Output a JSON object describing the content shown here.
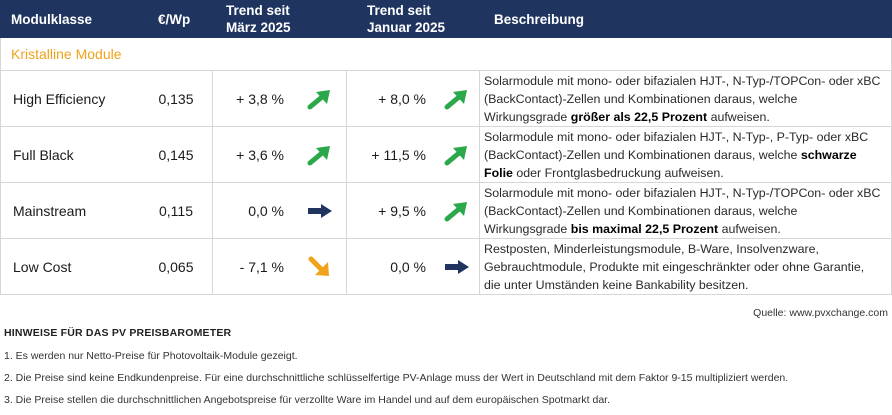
{
  "header": {
    "modulklasse": "Modulklasse",
    "price": "€/Wp",
    "trend1_line1": "Trend seit",
    "trend1_line2": "März 2025",
    "trend2_line1": "Trend seit",
    "trend2_line2": "Januar 2025",
    "beschreibung": "Beschreibung"
  },
  "section_title": "Kristalline Module",
  "rows": [
    {
      "name": "High Efficiency",
      "price": "0,135",
      "trend1": "+ 3,8 %",
      "trend1_icon": "arrow-up-right-icon",
      "trend2": "+ 8,0 %",
      "trend2_icon": "arrow-up-right-icon",
      "desc_pre": "Solarmodule mit mono- oder bifazialen HJT-, N-Typ-/TOPCon- oder xBC (BackContact)-Zellen und Kombinationen daraus, welche Wirkungsgrade ",
      "desc_bold": "größer als 22,5 Prozent",
      "desc_post": " aufweisen."
    },
    {
      "name": "Full Black",
      "price": "0,145",
      "trend1": "+ 3,6 %",
      "trend1_icon": "arrow-up-right-icon",
      "trend2": "+ 11,5 %",
      "trend2_icon": "arrow-up-right-icon",
      "desc_pre": "Solarmodule mit mono- oder bifazialen HJT-, N-Typ-, P-Typ- oder xBC (BackContact)-Zellen und Kombinationen daraus, welche ",
      "desc_bold": "schwarze Folie",
      "desc_post": " oder Frontglasbedruckung aufweisen."
    },
    {
      "name": "Mainstream",
      "price": "0,115",
      "trend1": "0,0 %",
      "trend1_icon": "arrow-right-icon",
      "trend2": "+ 9,5 %",
      "trend2_icon": "arrow-up-right-icon",
      "desc_pre": "Solarmodule mit mono- oder bifazialen HJT-, N-Typ-/TOPCon- oder xBC (BackContact)-Zellen und Kombinationen daraus, welche Wirkungsgrade ",
      "desc_bold": "bis maximal 22,5 Prozent",
      "desc_post": " aufweisen."
    },
    {
      "name": "Low Cost",
      "price": "0,065",
      "trend1": "-  7,1 %",
      "trend1_icon": "arrow-down-right-icon",
      "trend2": "0,0 %",
      "trend2_icon": "arrow-right-icon",
      "desc_pre": "Restposten, Minderleistungsmodule, B-Ware, Insolvenzware, Gebrauchtmodule, Produkte mit eingeschränkter oder ohne Garantie, die unter Umständen keine Bankability besitzen.",
      "desc_bold": "",
      "desc_post": ""
    }
  ],
  "colors": {
    "header_bg": "#1f3560",
    "section_title": "#f0a21b",
    "arrow_up": "#2aa84a",
    "arrow_right": "#1f3560",
    "arrow_down": "#f0a21b"
  },
  "source": "Quelle: www.pvxchange.com",
  "notes_title": "HINWEISE FÜR DAS PV PREISBAROMETER",
  "notes": [
    "1.  Es werden nur Netto-Preise für Photovoltaik-Module gezeigt.",
    "2. Die Preise sind keine Endkundenpreise. Für eine durchschnittliche schlüsselfertige PV-Anlage muss der Wert in Deutschland mit dem Faktor 9-15 multipliziert werden.",
    "3. Die Preise stellen die durchschnittlichen Angebotspreise für verzollte Ware im Handel und auf dem europäischen Spotmarkt dar."
  ]
}
